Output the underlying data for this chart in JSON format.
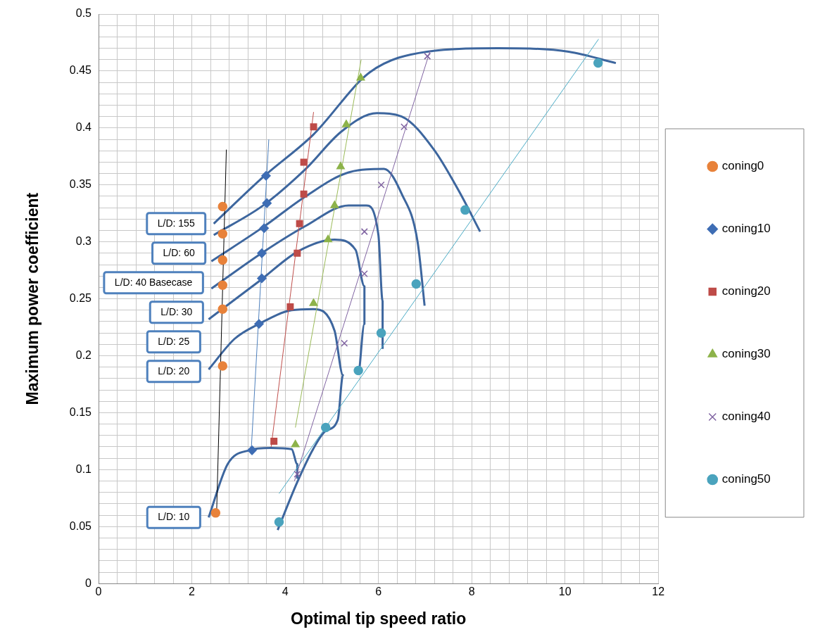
{
  "chart_data": {
    "type": "scatter",
    "xlabel": "Optimal tip speed ratio",
    "ylabel": "Maximum power coefficient",
    "xlim": [
      0,
      12
    ],
    "ylim": [
      0,
      0.5
    ],
    "xticks": [
      0,
      {
        "value": 0.4,
        "label": null
      },
      {
        "value": 0.8,
        "label": null
      },
      {
        "value": 1.2,
        "label": null
      },
      {
        "value": 1.6,
        "label": null
      },
      2,
      {
        "value": 2.4,
        "label": null
      },
      {
        "value": 2.8,
        "label": null
      },
      {
        "value": 3.2,
        "label": null
      },
      {
        "value": 3.6,
        "label": null
      },
      4,
      {
        "value": 4.4,
        "label": null
      },
      {
        "value": 4.8,
        "label": null
      },
      {
        "value": 5.2,
        "label": null
      },
      {
        "value": 5.6,
        "label": null
      },
      6,
      {
        "value": 6.4,
        "label": null
      },
      {
        "value": 6.8,
        "label": null
      },
      {
        "value": 7.2,
        "label": null
      },
      {
        "value": 7.6,
        "label": null
      },
      8,
      {
        "value": 8.4,
        "label": null
      },
      {
        "value": 8.8,
        "label": null
      },
      {
        "value": 9.2,
        "label": null
      },
      {
        "value": 9.6,
        "label": null
      },
      10,
      {
        "value": 10.4,
        "label": null
      },
      {
        "value": 10.8,
        "label": null
      },
      {
        "value": 11.2,
        "label": null
      },
      {
        "value": 11.6,
        "label": null
      },
      12
    ],
    "yticks": [
      0,
      {
        "value": 0.01,
        "label": null
      },
      {
        "value": 0.02,
        "label": null
      },
      {
        "value": 0.03,
        "label": null
      },
      {
        "value": 0.04,
        "label": null
      },
      0.05,
      {
        "value": 0.06,
        "label": null
      },
      {
        "value": 0.07,
        "label": null
      },
      {
        "value": 0.08,
        "label": null
      },
      {
        "value": 0.09,
        "label": null
      },
      0.1,
      {
        "value": 0.11,
        "label": null
      },
      {
        "value": 0.12,
        "label": null
      },
      {
        "value": 0.13,
        "label": null
      },
      {
        "value": 0.14,
        "label": null
      },
      0.15,
      {
        "value": 0.16,
        "label": null
      },
      {
        "value": 0.17,
        "label": null
      },
      {
        "value": 0.18,
        "label": null
      },
      {
        "value": 0.19,
        "label": null
      },
      0.2,
      {
        "value": 0.21,
        "label": null
      },
      {
        "value": 0.22,
        "label": null
      },
      {
        "value": 0.23,
        "label": null
      },
      {
        "value": 0.24,
        "label": null
      },
      0.25,
      {
        "value": 0.26,
        "label": null
      },
      {
        "value": 0.27,
        "label": null
      },
      {
        "value": 0.28,
        "label": null
      },
      {
        "value": 0.29,
        "label": null
      },
      0.3,
      {
        "value": 0.31,
        "label": null
      },
      {
        "value": 0.32,
        "label": null
      },
      {
        "value": 0.33,
        "label": null
      },
      {
        "value": 0.34,
        "label": null
      },
      0.35,
      {
        "value": 0.36,
        "label": null
      },
      {
        "value": 0.37,
        "label": null
      },
      {
        "value": 0.38,
        "label": null
      },
      {
        "value": 0.39,
        "label": null
      },
      0.4,
      {
        "value": 0.41,
        "label": null
      },
      {
        "value": 0.42,
        "label": null
      },
      {
        "value": 0.43,
        "label": null
      },
      {
        "value": 0.44,
        "label": null
      },
      0.45,
      {
        "value": 0.46,
        "label": null
      },
      {
        "value": 0.47,
        "label": null
      },
      {
        "value": 0.48,
        "label": null
      },
      {
        "value": 0.49,
        "label": null
      },
      0.5
    ],
    "grid": true,
    "legend": "right",
    "series": [
      {
        "type": "line",
        "marker": "none",
        "color": "#000000",
        "x": [
          2.53,
          2.74
        ],
        "values": [
          0.06,
          0.381
        ]
      },
      {
        "type": "line",
        "marker": "none",
        "color": "#4f81bd",
        "x": [
          3.27,
          3.65
        ],
        "values": [
          0.115,
          0.39
        ]
      },
      {
        "type": "line",
        "marker": "none",
        "color": "#c0504d",
        "x": [
          3.7,
          4.61
        ],
        "values": [
          0.12,
          0.414
        ]
      },
      {
        "type": "line",
        "marker": "none",
        "color": "#9bbb59",
        "x": [
          4.22,
          5.63
        ],
        "values": [
          0.137,
          0.46
        ]
      },
      {
        "type": "line",
        "marker": "none",
        "color": "#8064a2",
        "x": [
          4.2,
          7.11
        ],
        "values": [
          0.09,
          0.468
        ]
      },
      {
        "type": "line",
        "marker": "none",
        "color": "#4bacc6",
        "x": [
          3.87,
          10.72
        ],
        "values": [
          0.079,
          0.478
        ]
      },
      {
        "type": "line",
        "marker": "none",
        "color": "#3d669e",
        "x": [
          2.36,
          2.77,
          3.23,
          3.69,
          4.14,
          4.26,
          4.26
        ],
        "values": [
          0.058,
          0.105,
          0.117,
          0.119,
          0.118,
          0.105,
          0.092
        ]
      },
      {
        "type": "line",
        "marker": "none",
        "color": "#3d669e",
        "x": [
          2.36,
          2.92,
          3.44,
          4.14,
          4.6,
          5.06,
          5.24,
          5.13,
          4.87,
          4.6,
          4.26,
          3.84
        ],
        "values": [
          0.188,
          0.215,
          0.228,
          0.24,
          0.241,
          0.222,
          0.183,
          0.144,
          0.134,
          0.118,
          0.089,
          0.047
        ]
      },
      {
        "type": "line",
        "marker": "none",
        "color": "#3d669e",
        "x": [
          2.36,
          3.46,
          4.29,
          5.06,
          5.51,
          5.7,
          5.7,
          5.59
        ],
        "values": [
          0.232,
          0.266,
          0.292,
          0.302,
          0.293,
          0.261,
          0.228,
          0.187
        ]
      },
      {
        "type": "line",
        "marker": "none",
        "color": "#3d669e",
        "x": [
          2.42,
          3.53,
          4.44,
          5.36,
          5.74,
          6.0,
          6.09,
          6.09
        ],
        "values": [
          0.259,
          0.291,
          0.314,
          0.332,
          0.332,
          0.306,
          0.248,
          0.206
        ]
      },
      {
        "type": "line",
        "marker": "none",
        "color": "#3d669e",
        "x": [
          2.42,
          3.53,
          4.44,
          5.36,
          6.12,
          6.5,
          6.84,
          6.99
        ],
        "values": [
          0.283,
          0.313,
          0.34,
          0.361,
          0.364,
          0.342,
          0.3,
          0.244
        ]
      },
      {
        "type": "line",
        "marker": "none",
        "color": "#3d669e",
        "x": [
          2.47,
          3.53,
          4.44,
          5.21,
          5.97,
          6.5,
          7.19,
          7.72,
          8.18
        ],
        "values": [
          0.306,
          0.332,
          0.364,
          0.397,
          0.413,
          0.41,
          0.381,
          0.345,
          0.309
        ]
      },
      {
        "type": "line",
        "marker": "none",
        "color": "#3d669e",
        "x": [
          2.47,
          3.53,
          4.6,
          5.82,
          7.04,
          8.56,
          10.08,
          11.09
        ],
        "values": [
          0.316,
          0.357,
          0.394,
          0.449,
          0.467,
          0.47,
          0.467,
          0.457
        ]
      },
      {
        "name": "coning0",
        "type": "scatter",
        "marker": "circle",
        "color": "#e8823a",
        "x": [
          2.51,
          2.66,
          2.66,
          2.66,
          2.66,
          2.66,
          2.66
        ],
        "values": [
          0.062,
          0.191,
          0.241,
          0.262,
          0.284,
          0.307,
          0.331
        ]
      },
      {
        "name": "coning10",
        "type": "scatter",
        "marker": "diamond",
        "color": "#3e6db4",
        "x": [
          3.29,
          3.44,
          3.5,
          3.5,
          3.55,
          3.61,
          3.59
        ],
        "values": [
          0.117,
          0.228,
          0.268,
          0.29,
          0.312,
          0.334,
          0.358
        ]
      },
      {
        "name": "coning20",
        "type": "scatter",
        "marker": "square",
        "color": "#be4b48",
        "x": [
          3.76,
          4.11,
          4.26,
          4.31,
          4.4,
          4.4,
          4.61
        ],
        "values": [
          0.125,
          0.243,
          0.29,
          0.316,
          0.342,
          0.37,
          0.401
        ]
      },
      {
        "name": "coning30",
        "type": "scatter",
        "marker": "triangle",
        "color": "#8db34a",
        "x": [
          4.22,
          4.61,
          4.92,
          5.06,
          5.19,
          5.31,
          5.62
        ],
        "values": [
          0.122,
          0.246,
          0.302,
          0.332,
          0.366,
          0.403,
          0.444
        ]
      },
      {
        "name": "coning40",
        "type": "scatter",
        "marker": "cross",
        "color": "#8064a2",
        "x": [
          4.26,
          5.27,
          5.7,
          5.7,
          6.06,
          6.55,
          7.05
        ],
        "values": [
          0.096,
          0.211,
          0.272,
          0.309,
          0.35,
          0.401,
          0.463
        ]
      },
      {
        "name": "coning50",
        "type": "scatter",
        "marker": "circle",
        "color": "#4aa3bd",
        "x": [
          3.87,
          4.87,
          5.57,
          6.06,
          6.81,
          7.86,
          10.71
        ],
        "values": [
          0.054,
          0.137,
          0.187,
          0.22,
          0.263,
          0.328,
          0.457
        ]
      }
    ],
    "annotations": [
      {
        "text": "L/D: 155",
        "x": 2.47,
        "y": 0.316
      },
      {
        "text": "L/D: 60",
        "x": 2.47,
        "y": 0.306
      },
      {
        "text": "L/D: 40 Basecase",
        "x": 2.42,
        "y": 0.283
      },
      {
        "text": "L/D: 30",
        "x": 2.42,
        "y": 0.259
      },
      {
        "text": "L/D: 25",
        "x": 2.36,
        "y": 0.232
      },
      {
        "text": "L/D: 20",
        "x": 2.36,
        "y": 0.188
      },
      {
        "text": "L/D: 10",
        "x": 2.36,
        "y": 0.058
      }
    ]
  }
}
